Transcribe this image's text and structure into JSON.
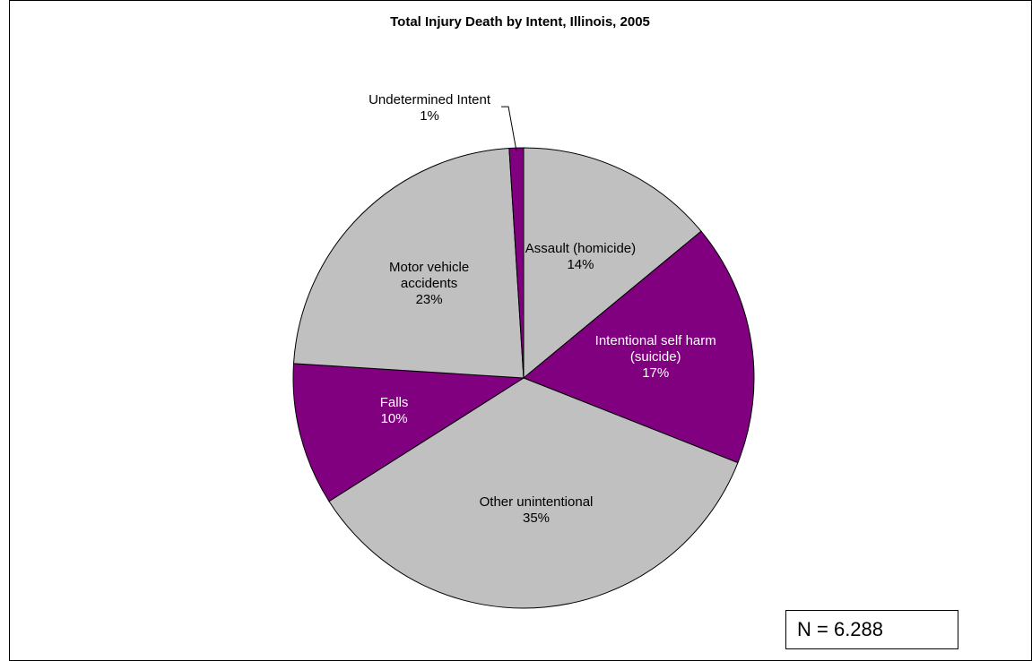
{
  "chart_data": {
    "type": "pie",
    "title": "Total Injury Death by Intent, Illinois, 2005",
    "categories": [
      "Assault (homicide)",
      "Intentional self harm (suicide)",
      "Other unintentional",
      "Falls",
      "Motor vehicle accidents",
      "Undetermined Intent"
    ],
    "values": [
      14,
      17,
      35,
      10,
      23,
      1
    ],
    "value_labels": [
      "14%",
      "17%",
      "35%",
      "10%",
      "23%",
      "1%"
    ],
    "colors": [
      "#c0c0c0",
      "#800080",
      "#c0c0c0",
      "#800080",
      "#c0c0c0",
      "#800080"
    ],
    "annotation": "N = 6.288"
  }
}
